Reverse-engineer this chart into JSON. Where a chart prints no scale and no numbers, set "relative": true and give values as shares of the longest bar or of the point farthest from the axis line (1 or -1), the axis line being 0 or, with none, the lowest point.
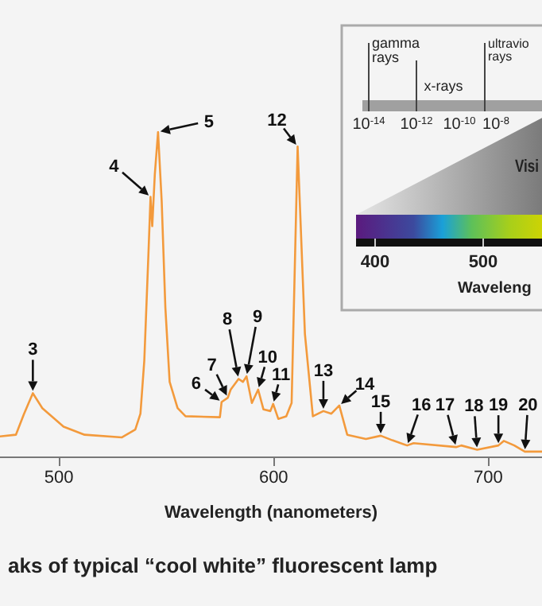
{
  "chart_data": {
    "type": "line",
    "relative": true,
    "title": "aks of typical “cool white” fluorescent lamp",
    "xlabel": "Wavelength (nanometers)",
    "xlim": [
      472.6,
      725
    ],
    "xticks": [
      500,
      600,
      700
    ],
    "grid": false,
    "marker": "none",
    "line_style": "solid",
    "series": [
      {
        "color": "#f39a3c",
        "x": [
          472.6,
          480,
          483.7,
          487.9,
          492.3,
          502.2,
          512,
          529.4,
          535.6,
          538,
          539.8,
          541.7,
          542.7,
          543.5,
          544.7,
          546.2,
          547.9,
          549.6,
          551.6,
          555.3,
          559,
          575,
          575.8,
          578.7,
          580,
          583.7,
          585.7,
          587.4,
          589.9,
          592.8,
          595.3,
          598.5,
          599.8,
          602.2,
          605.9,
          608.4,
          611.2,
          614.6,
          618.3,
          623.2,
          626.9,
          630.6,
          634.3,
          643,
          649.9,
          655.3,
          662.2,
          665.2,
          685,
          687.4,
          694.8,
          704.7,
          707.2,
          712.1,
          717,
          725
        ],
        "values": [
          0.062,
          0.067,
          0.13,
          0.195,
          0.149,
          0.092,
          0.067,
          0.059,
          0.083,
          0.132,
          0.296,
          0.62,
          0.8,
          0.71,
          0.87,
          1,
          0.786,
          0.46,
          0.23,
          0.149,
          0.124,
          0.121,
          0.168,
          0.181,
          0.206,
          0.239,
          0.23,
          0.247,
          0.165,
          0.206,
          0.145,
          0.14,
          0.162,
          0.116,
          0.124,
          0.165,
          0.955,
          0.377,
          0.124,
          0.14,
          0.132,
          0.157,
          0.067,
          0.054,
          0.064,
          0.05,
          0.034,
          0.041,
          0.029,
          0.034,
          0.021,
          0.034,
          0.048,
          0.034,
          0.015,
          0.015
        ]
      }
    ],
    "annotations": [
      {
        "text": "3",
        "x": 487.9,
        "y": 0.195
      },
      {
        "text": "4",
        "x": 542.7,
        "y": 0.8
      },
      {
        "text": "5",
        "x": 546.2,
        "y": 1
      },
      {
        "text": "6",
        "x": 575.8,
        "y": 0.168
      },
      {
        "text": "7",
        "x": 578.7,
        "y": 0.181
      },
      {
        "text": "8",
        "x": 583.7,
        "y": 0.239
      },
      {
        "text": "9",
        "x": 587.4,
        "y": 0.247
      },
      {
        "text": "10",
        "x": 592.8,
        "y": 0.206
      },
      {
        "text": "11",
        "x": 599.8,
        "y": 0.162
      },
      {
        "text": "12",
        "x": 611.2,
        "y": 0.955
      },
      {
        "text": "13",
        "x": 623.2,
        "y": 0.14
      },
      {
        "text": "14",
        "x": 630.6,
        "y": 0.157
      },
      {
        "text": "15",
        "x": 649.9,
        "y": 0.064
      },
      {
        "text": "16",
        "x": 662.2,
        "y": 0.034
      },
      {
        "text": "17",
        "x": 685,
        "y": 0.029
      },
      {
        "text": "18",
        "x": 694.8,
        "y": 0.021
      },
      {
        "text": "19",
        "x": 704.7,
        "y": 0.034
      },
      {
        "text": "20",
        "x": 717,
        "y": 0.015
      },
      "gamma rays",
      "x-rays",
      "ultravio rays",
      "10$^{-14}$",
      "10$^{-12}$",
      "10$^{-10}$",
      "10$^{-8}$",
      "Visi",
      "400",
      "500",
      "Waveleng"
    ]
  }
}
